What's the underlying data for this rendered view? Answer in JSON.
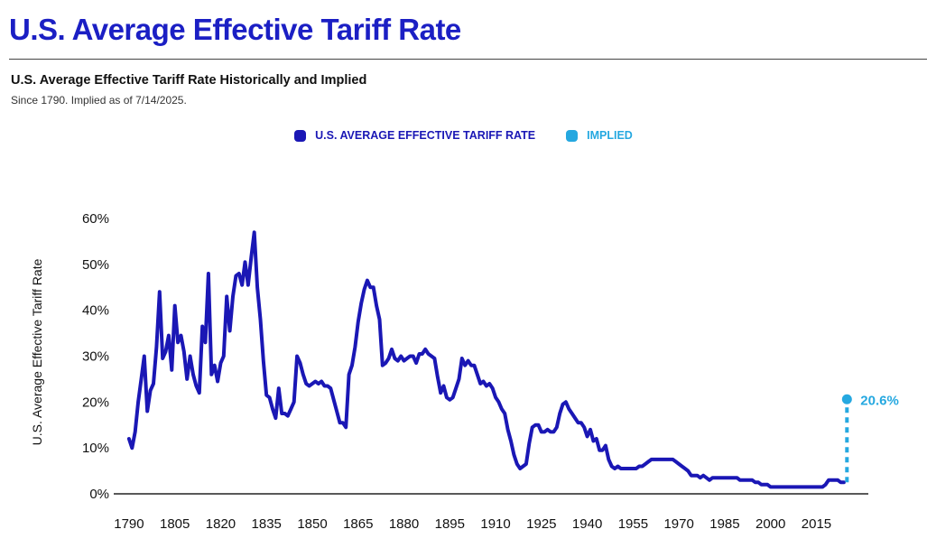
{
  "header": {
    "title": "U.S. Average Effective Tariff Rate"
  },
  "colors": {
    "primary": "#1b1fc4",
    "series": "#1a17b5",
    "implied": "#25a8e0",
    "axis": "#222222"
  },
  "chart_data": {
    "type": "line",
    "title": "U.S. Average Effective Tariff Rate Historically and Implied",
    "subtitle": "Since 1790. Implied as of 7/14/2025.",
    "xlabel": "",
    "ylabel": "U.S. Average Effective Tariff Rate",
    "xlim": [
      1785,
      2032
    ],
    "ylim": [
      0,
      60
    ],
    "x_ticks": [
      1790,
      1805,
      1820,
      1835,
      1850,
      1865,
      1880,
      1895,
      1910,
      1925,
      1940,
      1955,
      1970,
      1985,
      2000,
      2015
    ],
    "y_ticks": [
      0,
      10,
      20,
      30,
      40,
      50,
      60
    ],
    "y_tick_labels": [
      "0%",
      "10%",
      "20%",
      "30%",
      "40%",
      "50%",
      "60%"
    ],
    "grid": false,
    "legend_position": "top-center",
    "series": [
      {
        "name": "U.S. AVERAGE EFFECTIVE TARIFF RATE",
        "color": "#1a17b5",
        "points": [
          [
            1790,
            12
          ],
          [
            1791,
            10
          ],
          [
            1792,
            13.5
          ],
          [
            1793,
            20
          ],
          [
            1794,
            25
          ],
          [
            1795,
            30
          ],
          [
            1796,
            18
          ],
          [
            1797,
            22.5
          ],
          [
            1798,
            24
          ],
          [
            1799,
            32
          ],
          [
            1800,
            44
          ],
          [
            1801,
            29.5
          ],
          [
            1802,
            31
          ],
          [
            1803,
            34.5
          ],
          [
            1804,
            27
          ],
          [
            1805,
            41
          ],
          [
            1806,
            33
          ],
          [
            1807,
            34.5
          ],
          [
            1808,
            31
          ],
          [
            1809,
            25
          ],
          [
            1810,
            30
          ],
          [
            1811,
            26
          ],
          [
            1812,
            23.5
          ],
          [
            1813,
            22
          ],
          [
            1814,
            36.5
          ],
          [
            1815,
            33
          ],
          [
            1816,
            48
          ],
          [
            1817,
            26
          ],
          [
            1818,
            28
          ],
          [
            1819,
            24.5
          ],
          [
            1820,
            28.5
          ],
          [
            1821,
            30
          ],
          [
            1822,
            43
          ],
          [
            1823,
            35.5
          ],
          [
            1824,
            43
          ],
          [
            1825,
            47.5
          ],
          [
            1826,
            48
          ],
          [
            1827,
            45.5
          ],
          [
            1828,
            50.5
          ],
          [
            1829,
            45.5
          ],
          [
            1830,
            51.5
          ],
          [
            1831,
            57
          ],
          [
            1832,
            45
          ],
          [
            1833,
            38
          ],
          [
            1834,
            29
          ],
          [
            1835,
            21.5
          ],
          [
            1836,
            21
          ],
          [
            1837,
            18.5
          ],
          [
            1838,
            16.5
          ],
          [
            1839,
            23
          ],
          [
            1840,
            17.5
          ],
          [
            1841,
            17.5
          ],
          [
            1842,
            17
          ],
          [
            1843,
            18.5
          ],
          [
            1844,
            20
          ],
          [
            1845,
            30
          ],
          [
            1846,
            28.5
          ],
          [
            1847,
            26
          ],
          [
            1848,
            24
          ],
          [
            1849,
            23.5
          ],
          [
            1850,
            24
          ],
          [
            1851,
            24.5
          ],
          [
            1852,
            24
          ],
          [
            1853,
            24.5
          ],
          [
            1854,
            23.5
          ],
          [
            1855,
            23.5
          ],
          [
            1856,
            23
          ],
          [
            1857,
            20.5
          ],
          [
            1858,
            18
          ],
          [
            1859,
            15.5
          ],
          [
            1860,
            15.5
          ],
          [
            1861,
            14.5
          ],
          [
            1862,
            26
          ],
          [
            1863,
            28
          ],
          [
            1864,
            32
          ],
          [
            1865,
            37.5
          ],
          [
            1866,
            41.5
          ],
          [
            1867,
            44.5
          ],
          [
            1868,
            46.5
          ],
          [
            1869,
            45
          ],
          [
            1870,
            45
          ],
          [
            1871,
            41
          ],
          [
            1872,
            38
          ],
          [
            1873,
            28
          ],
          [
            1874,
            28.5
          ],
          [
            1875,
            29.5
          ],
          [
            1876,
            31.5
          ],
          [
            1877,
            29.5
          ],
          [
            1878,
            29
          ],
          [
            1879,
            30
          ],
          [
            1880,
            29
          ],
          [
            1881,
            29.5
          ],
          [
            1882,
            30
          ],
          [
            1883,
            30
          ],
          [
            1884,
            28.5
          ],
          [
            1885,
            30.5
          ],
          [
            1886,
            30.5
          ],
          [
            1887,
            31.5
          ],
          [
            1888,
            30.5
          ],
          [
            1889,
            30
          ],
          [
            1890,
            29.5
          ],
          [
            1891,
            25.5
          ],
          [
            1892,
            22
          ],
          [
            1893,
            23.5
          ],
          [
            1894,
            21
          ],
          [
            1895,
            20.5
          ],
          [
            1896,
            21
          ],
          [
            1897,
            23
          ],
          [
            1898,
            25
          ],
          [
            1899,
            29.5
          ],
          [
            1900,
            28
          ],
          [
            1901,
            29
          ],
          [
            1902,
            28
          ],
          [
            1903,
            28
          ],
          [
            1904,
            26
          ],
          [
            1905,
            24
          ],
          [
            1906,
            24.5
          ],
          [
            1907,
            23.5
          ],
          [
            1908,
            24
          ],
          [
            1909,
            23
          ],
          [
            1910,
            21
          ],
          [
            1911,
            20
          ],
          [
            1912,
            18.5
          ],
          [
            1913,
            17.5
          ],
          [
            1914,
            14
          ],
          [
            1915,
            11.5
          ],
          [
            1916,
            8.5
          ],
          [
            1917,
            6.5
          ],
          [
            1918,
            5.5
          ],
          [
            1919,
            6
          ],
          [
            1920,
            6.5
          ],
          [
            1921,
            11
          ],
          [
            1922,
            14.5
          ],
          [
            1923,
            15
          ],
          [
            1924,
            15
          ],
          [
            1925,
            13.5
          ],
          [
            1926,
            13.5
          ],
          [
            1927,
            14
          ],
          [
            1928,
            13.5
          ],
          [
            1929,
            13.5
          ],
          [
            1930,
            14.5
          ],
          [
            1931,
            17.5
          ],
          [
            1932,
            19.5
          ],
          [
            1933,
            20
          ],
          [
            1934,
            18.5
          ],
          [
            1935,
            17.5
          ],
          [
            1936,
            16.5
          ],
          [
            1937,
            15.5
          ],
          [
            1938,
            15.5
          ],
          [
            1939,
            14.5
          ],
          [
            1940,
            12.5
          ],
          [
            1941,
            14
          ],
          [
            1942,
            11.5
          ],
          [
            1943,
            12
          ],
          [
            1944,
            9.5
          ],
          [
            1945,
            9.5
          ],
          [
            1946,
            10.5
          ],
          [
            1947,
            7.5
          ],
          [
            1948,
            6
          ],
          [
            1949,
            5.5
          ],
          [
            1950,
            6
          ],
          [
            1951,
            5.5
          ],
          [
            1952,
            5.5
          ],
          [
            1953,
            5.5
          ],
          [
            1954,
            5.5
          ],
          [
            1955,
            5.5
          ],
          [
            1956,
            5.5
          ],
          [
            1957,
            6
          ],
          [
            1958,
            6
          ],
          [
            1959,
            6.5
          ],
          [
            1960,
            7
          ],
          [
            1961,
            7.5
          ],
          [
            1962,
            7.5
          ],
          [
            1963,
            7.5
          ],
          [
            1964,
            7.5
          ],
          [
            1965,
            7.5
          ],
          [
            1966,
            7.5
          ],
          [
            1967,
            7.5
          ],
          [
            1968,
            7.5
          ],
          [
            1969,
            7
          ],
          [
            1970,
            6.5
          ],
          [
            1971,
            6
          ],
          [
            1972,
            5.5
          ],
          [
            1973,
            5
          ],
          [
            1974,
            4
          ],
          [
            1975,
            4
          ],
          [
            1976,
            4
          ],
          [
            1977,
            3.5
          ],
          [
            1978,
            4
          ],
          [
            1979,
            3.5
          ],
          [
            1980,
            3
          ],
          [
            1981,
            3.5
          ],
          [
            1982,
            3.5
          ],
          [
            1983,
            3.5
          ],
          [
            1984,
            3.5
          ],
          [
            1985,
            3.5
          ],
          [
            1986,
            3.5
          ],
          [
            1987,
            3.5
          ],
          [
            1988,
            3.5
          ],
          [
            1989,
            3.5
          ],
          [
            1990,
            3
          ],
          [
            1991,
            3
          ],
          [
            1992,
            3
          ],
          [
            1993,
            3
          ],
          [
            1994,
            3
          ],
          [
            1995,
            2.5
          ],
          [
            1996,
            2.5
          ],
          [
            1997,
            2
          ],
          [
            1998,
            2
          ],
          [
            1999,
            2
          ],
          [
            2000,
            1.5
          ],
          [
            2001,
            1.5
          ],
          [
            2002,
            1.5
          ],
          [
            2003,
            1.5
          ],
          [
            2004,
            1.5
          ],
          [
            2005,
            1.5
          ],
          [
            2006,
            1.5
          ],
          [
            2007,
            1.5
          ],
          [
            2008,
            1.5
          ],
          [
            2009,
            1.5
          ],
          [
            2010,
            1.5
          ],
          [
            2011,
            1.5
          ],
          [
            2012,
            1.5
          ],
          [
            2013,
            1.5
          ],
          [
            2014,
            1.5
          ],
          [
            2015,
            1.5
          ],
          [
            2016,
            1.5
          ],
          [
            2017,
            1.5
          ],
          [
            2018,
            2
          ],
          [
            2019,
            3
          ],
          [
            2020,
            3
          ],
          [
            2021,
            3
          ],
          [
            2022,
            3
          ],
          [
            2023,
            2.5
          ],
          [
            2024,
            2.5
          ]
        ]
      },
      {
        "name": "IMPLIED",
        "color": "#25a8e0",
        "points": [
          [
            2025,
            2.5
          ],
          [
            2025,
            20.6
          ]
        ],
        "end_label": "20.6%"
      }
    ]
  }
}
